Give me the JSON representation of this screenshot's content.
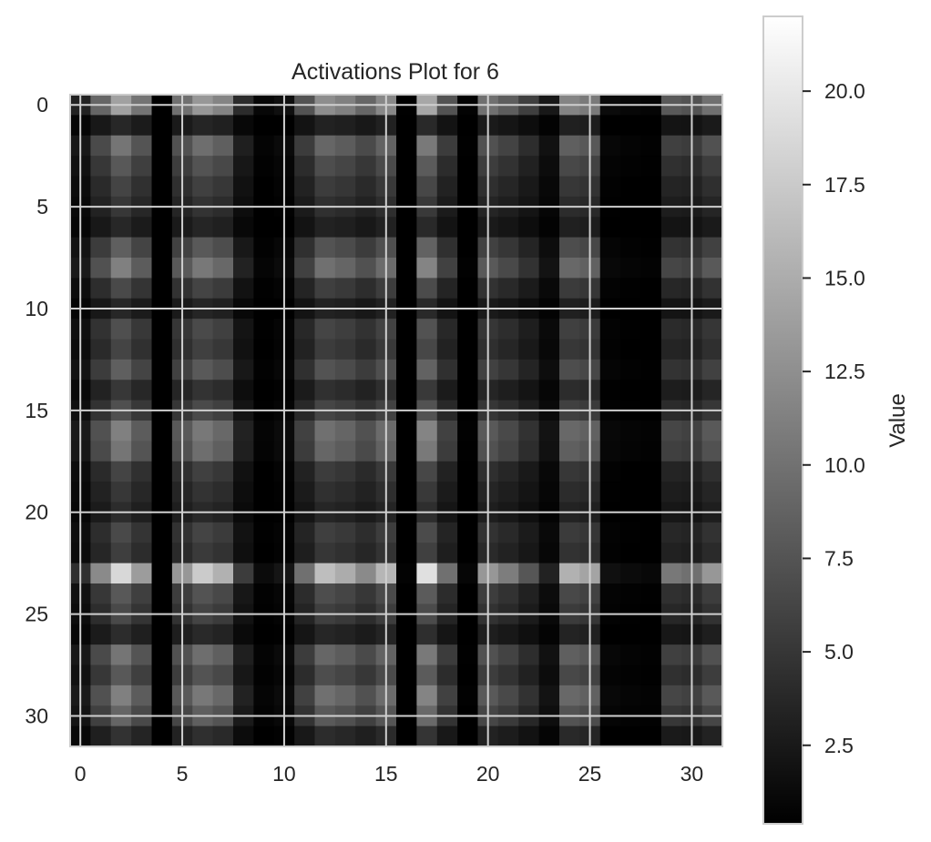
{
  "chart_data": {
    "type": "heatmap",
    "title": "Activations Plot for 6",
    "colormap": "gray",
    "grid": true,
    "rows": 32,
    "cols": 32,
    "x_ticks": [
      "0",
      "5",
      "10",
      "15",
      "20",
      "25",
      "30"
    ],
    "y_ticks": [
      "0",
      "5",
      "10",
      "15",
      "20",
      "25",
      "30"
    ],
    "colorbar": {
      "label": "Value",
      "range": [
        0.4,
        22
      ],
      "ticks": [
        "2.5",
        "5.0",
        "7.5",
        "10.0",
        "12.5",
        "15.0",
        "17.5",
        "20.0"
      ]
    },
    "column_weights": [
      0.2,
      0.55,
      0.85,
      0.62,
      0.02,
      0.6,
      0.8,
      0.7,
      0.25,
      0.06,
      0.1,
      0.45,
      0.75,
      0.68,
      0.55,
      0.72,
      0.03,
      0.88,
      0.45,
      0.04,
      0.6,
      0.5,
      0.35,
      0.15,
      0.7,
      0.65,
      0.08,
      0.06,
      0.05,
      0.48,
      0.45,
      0.6
    ],
    "row_weights": [
      0.75,
      0.2,
      0.55,
      0.42,
      0.33,
      0.27,
      0.2,
      0.45,
      0.6,
      0.35,
      0.2,
      0.38,
      0.33,
      0.45,
      0.27,
      0.38,
      0.6,
      0.55,
      0.33,
      0.27,
      0.22,
      0.35,
      0.3,
      1.0,
      0.42,
      0.35,
      0.22,
      0.55,
      0.42,
      0.6,
      0.48,
      0.25
    ],
    "value_scale": 22
  }
}
